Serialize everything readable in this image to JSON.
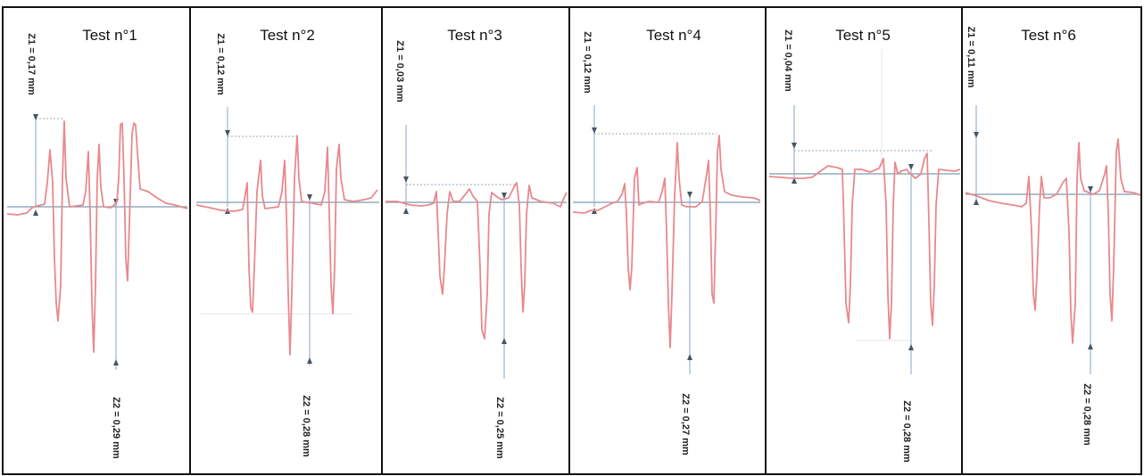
{
  "panels": [
    {
      "title": "Test n°1",
      "z1": "Z1 = 0,17 mm",
      "z2": "Z2 = 0,29 mm"
    },
    {
      "title": "Test n°2",
      "z1": "Z1 = 0,12 mm",
      "z2": "Z2 = 0,28 mm"
    },
    {
      "title": "Test n°3",
      "z1": "Z1 = 0,03 mm",
      "z2": "Z2 = 0,25 mm"
    },
    {
      "title": "Test n°4",
      "z1": "Z1 = 0,12 mm",
      "z2": "Z2 = 0,27 mm"
    },
    {
      "title": "Test n°5",
      "z1": "Z1 = 0,04 mm",
      "z2": "Z2 = 0,28 mm"
    },
    {
      "title": "Test n°6",
      "z1": "Z1 = 0,11 mm",
      "z2": "Z2 = 0,28 mm"
    }
  ],
  "colors": {
    "profile": "#e8898e",
    "baseline": "#7a9cb0",
    "frame": "#111111"
  }
}
